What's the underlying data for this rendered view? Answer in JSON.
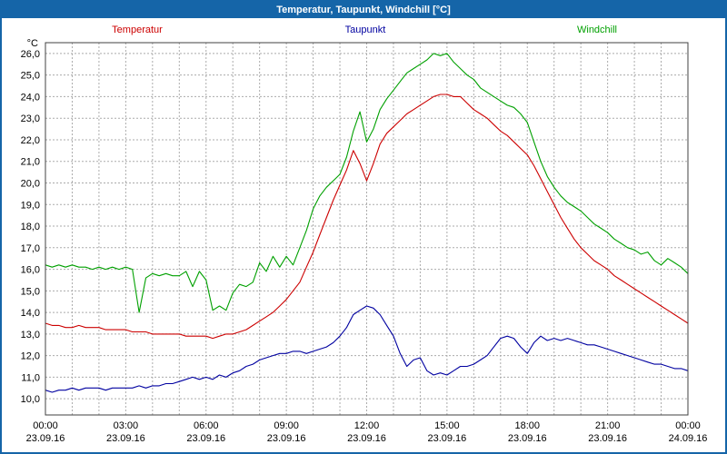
{
  "window": {
    "title": "Temperatur, Taupunkt, Windchill [°C]",
    "titlebar_color": "#1565a8",
    "border_color": "#1565a8"
  },
  "axes": {
    "y_unit": "°C"
  },
  "chart_data": {
    "type": "line",
    "title": "Temperatur, Taupunkt, Windchill [°C]",
    "grid": "dashed",
    "grid_color": "#ababab",
    "plot_border_color": "#404040",
    "legend_position": "top",
    "x_start": 0,
    "x_step": 0.25,
    "xlim": [
      0,
      24
    ],
    "ylim": [
      10,
      26
    ],
    "ytick_step": 1,
    "ydraw": [
      9.25,
      26.5
    ],
    "y_tick_format": "comma-decimal",
    "y_unit": "°C",
    "x_ticks": [
      {
        "h": 0,
        "time": "00:00",
        "date": "23.09.16"
      },
      {
        "h": 3,
        "time": "03:00",
        "date": "23.09.16"
      },
      {
        "h": 6,
        "time": "06:00",
        "date": "23.09.16"
      },
      {
        "h": 9,
        "time": "09:00",
        "date": "23.09.16"
      },
      {
        "h": 12,
        "time": "12:00",
        "date": "23.09.16"
      },
      {
        "h": 15,
        "time": "15:00",
        "date": "23.09.16"
      },
      {
        "h": 18,
        "time": "18:00",
        "date": "23.09.16"
      },
      {
        "h": 21,
        "time": "21:00",
        "date": "23.09.16"
      },
      {
        "h": 24,
        "time": "00:00",
        "date": "24.09.16"
      }
    ],
    "series": [
      {
        "name": "Temperatur",
        "color": "#cc0000",
        "values": [
          13.5,
          13.4,
          13.4,
          13.3,
          13.3,
          13.4,
          13.3,
          13.3,
          13.3,
          13.2,
          13.2,
          13.2,
          13.2,
          13.1,
          13.1,
          13.1,
          13.0,
          13.0,
          13.0,
          13.0,
          13.0,
          12.9,
          12.9,
          12.9,
          12.9,
          12.8,
          12.9,
          13.0,
          13.0,
          13.1,
          13.2,
          13.4,
          13.6,
          13.8,
          14.0,
          14.3,
          14.6,
          15.0,
          15.4,
          16.1,
          16.8,
          17.6,
          18.4,
          19.2,
          19.9,
          20.6,
          21.5,
          20.9,
          20.1,
          20.9,
          21.8,
          22.3,
          22.6,
          22.9,
          23.2,
          23.4,
          23.6,
          23.8,
          24.0,
          24.1,
          24.1,
          24.0,
          24.0,
          23.7,
          23.4,
          23.2,
          23.0,
          22.7,
          22.4,
          22.2,
          21.9,
          21.6,
          21.3,
          20.8,
          20.2,
          19.6,
          19.0,
          18.4,
          17.9,
          17.4,
          17.0,
          16.7,
          16.4,
          16.2,
          16.0,
          15.7,
          15.5,
          15.3,
          15.1,
          14.9,
          14.7,
          14.5,
          14.3,
          14.1,
          13.9,
          13.7,
          13.5
        ]
      },
      {
        "name": "Taupunkt",
        "color": "#0000a0",
        "values": [
          10.4,
          10.3,
          10.4,
          10.4,
          10.5,
          10.4,
          10.5,
          10.5,
          10.5,
          10.4,
          10.5,
          10.5,
          10.5,
          10.5,
          10.6,
          10.5,
          10.6,
          10.6,
          10.7,
          10.7,
          10.8,
          10.9,
          11.0,
          10.9,
          11.0,
          10.9,
          11.1,
          11.0,
          11.2,
          11.3,
          11.5,
          11.6,
          11.8,
          11.9,
          12.0,
          12.1,
          12.1,
          12.2,
          12.2,
          12.1,
          12.2,
          12.3,
          12.4,
          12.6,
          12.9,
          13.3,
          13.9,
          14.1,
          14.3,
          14.2,
          13.9,
          13.4,
          12.9,
          12.1,
          11.5,
          11.8,
          11.9,
          11.3,
          11.1,
          11.2,
          11.1,
          11.3,
          11.5,
          11.5,
          11.6,
          11.8,
          12.0,
          12.4,
          12.8,
          12.9,
          12.8,
          12.4,
          12.1,
          12.6,
          12.9,
          12.7,
          12.8,
          12.7,
          12.8,
          12.7,
          12.6,
          12.5,
          12.5,
          12.4,
          12.3,
          12.2,
          12.1,
          12.0,
          11.9,
          11.8,
          11.7,
          11.6,
          11.6,
          11.5,
          11.4,
          11.4,
          11.3
        ]
      },
      {
        "name": "Windchill",
        "color": "#00a000",
        "values": [
          16.2,
          16.1,
          16.2,
          16.1,
          16.2,
          16.1,
          16.1,
          16.0,
          16.1,
          16.0,
          16.1,
          16.0,
          16.1,
          16.0,
          14.0,
          15.6,
          15.8,
          15.7,
          15.8,
          15.7,
          15.7,
          15.9,
          15.2,
          15.9,
          15.5,
          14.1,
          14.3,
          14.1,
          14.9,
          15.3,
          15.2,
          15.4,
          16.3,
          15.9,
          16.6,
          16.1,
          16.6,
          16.2,
          17.0,
          17.8,
          18.8,
          19.4,
          19.8,
          20.1,
          20.4,
          21.2,
          22.4,
          23.3,
          21.9,
          22.5,
          23.4,
          23.9,
          24.3,
          24.7,
          25.1,
          25.3,
          25.5,
          25.7,
          26.0,
          25.9,
          26.0,
          25.6,
          25.3,
          25.0,
          24.8,
          24.4,
          24.2,
          24.0,
          23.8,
          23.6,
          23.5,
          23.2,
          22.8,
          21.9,
          21.0,
          20.3,
          19.8,
          19.4,
          19.1,
          18.9,
          18.7,
          18.4,
          18.1,
          17.9,
          17.7,
          17.4,
          17.2,
          17.0,
          16.9,
          16.7,
          16.8,
          16.4,
          16.2,
          16.5,
          16.3,
          16.1,
          15.8
        ]
      }
    ]
  }
}
